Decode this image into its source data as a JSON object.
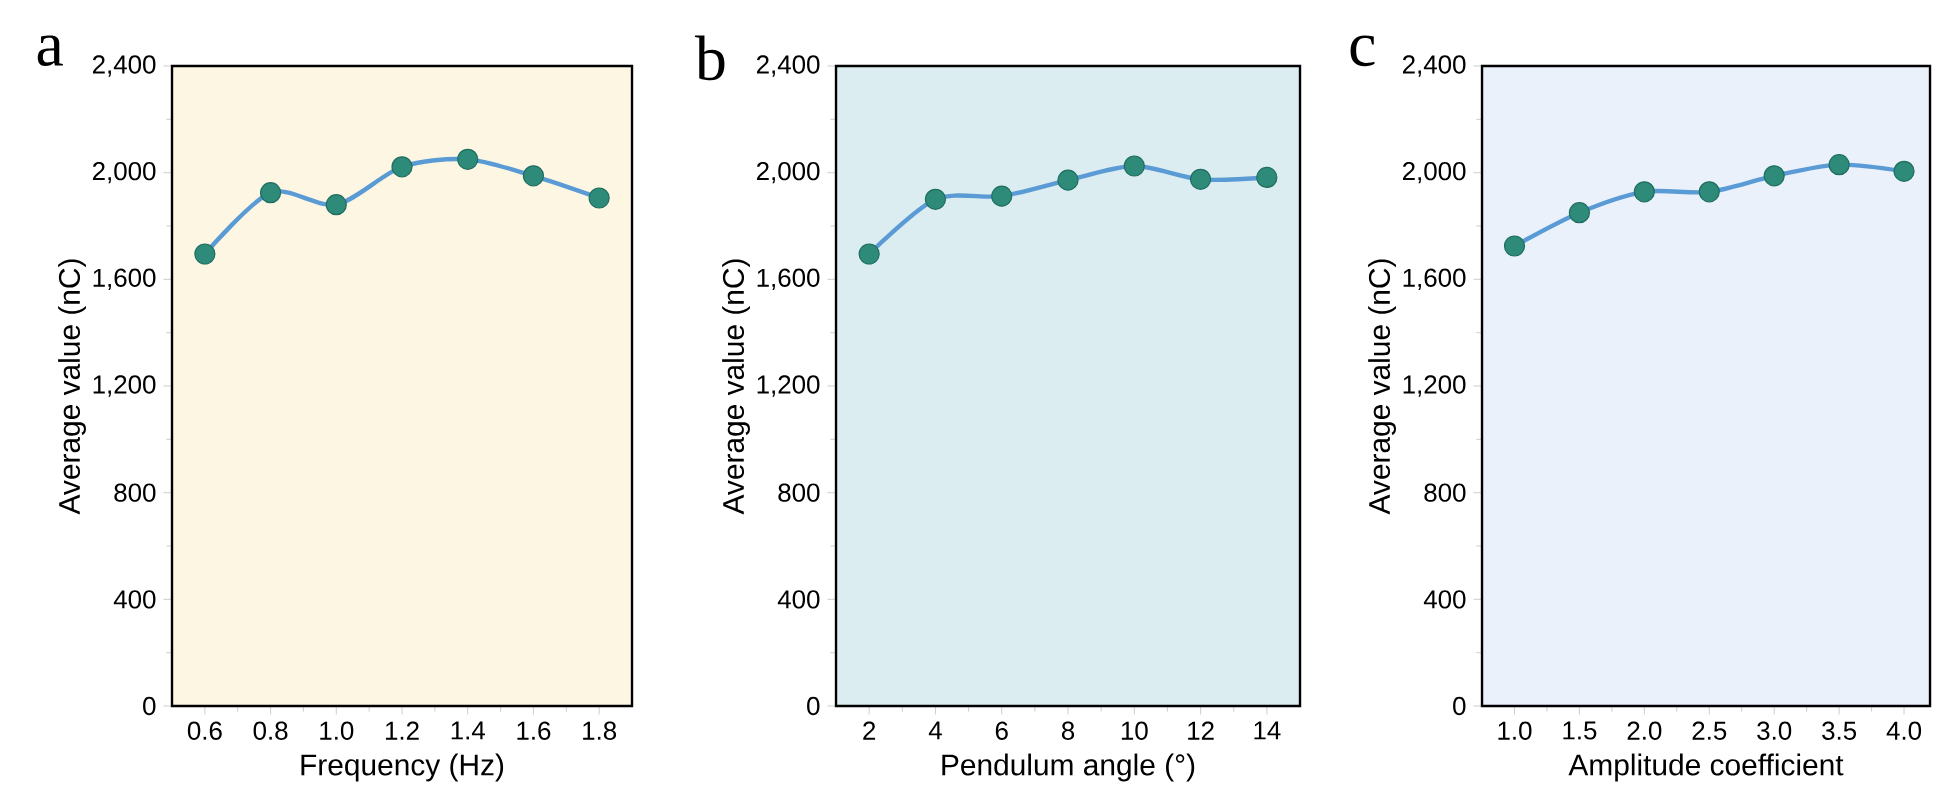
{
  "chart_data": [
    {
      "type": "line",
      "title": "a",
      "xlabel": "Frequency (Hz)",
      "ylabel": "Average value (nC)",
      "x": [
        0.6,
        0.8,
        1.0,
        1.2,
        1.4,
        1.6,
        1.8
      ],
      "series": [
        {
          "color": "#5b9bd5",
          "values": [
            1695,
            1925,
            1880,
            2022,
            2050,
            1988,
            1905
          ]
        }
      ],
      "xlim": [
        0.5,
        1.9
      ],
      "ylim": [
        0,
        2400
      ],
      "marker": "circle",
      "line_style": "solid",
      "xticks": [
        {
          "value": 0.6,
          "label": "0.6"
        },
        {
          "value": 0.8,
          "label": "0.8"
        },
        {
          "value": 1.0,
          "label": "1.0"
        },
        {
          "value": 1.2,
          "label": "1.2"
        },
        {
          "value": 1.4,
          "label": "1.4"
        },
        {
          "value": 1.6,
          "label": "1.6"
        },
        {
          "value": 1.8,
          "label": "1.8"
        }
      ],
      "yticks": [
        0,
        400,
        800,
        {
          "value": 1200,
          "label": "1,200"
        },
        {
          "value": 1600,
          "label": "1,600"
        },
        {
          "value": 2000,
          "label": "2,000"
        },
        {
          "value": 2400,
          "label": "2,400"
        }
      ]
    },
    {
      "type": "line",
      "title": "b",
      "xlabel": "Pendulum angle (°)",
      "ylabel": "Average value (nC)",
      "x": [
        2,
        4,
        6,
        8,
        10,
        12,
        14
      ],
      "series": [
        {
          "color": "#5b9bd5",
          "values": [
            1695,
            1900,
            1912,
            1972,
            2025,
            1975,
            1982
          ]
        }
      ],
      "xlim": [
        1,
        15
      ],
      "ylim": [
        0,
        2400
      ],
      "marker": "circle",
      "line_style": "solid",
      "xticks": [
        2,
        4,
        6,
        8,
        10,
        12,
        14
      ],
      "yticks": [
        0,
        400,
        800,
        {
          "value": 1200,
          "label": "1,200"
        },
        {
          "value": 1600,
          "label": "1,600"
        },
        {
          "value": 2000,
          "label": "2,000"
        },
        {
          "value": 2400,
          "label": "2,400"
        }
      ]
    },
    {
      "type": "line",
      "title": "c",
      "xlabel": "Amplitude coefficient",
      "ylabel": "Average value (nC)",
      "x": [
        1.0,
        1.5,
        2.0,
        2.5,
        3.0,
        3.5,
        4.0
      ],
      "series": [
        {
          "color": "#5b9bd5",
          "values": [
            1725,
            1850,
            1928,
            1928,
            1988,
            2030,
            2005
          ]
        }
      ],
      "xlim": [
        0.75,
        4.2
      ],
      "ylim": [
        0,
        2400
      ],
      "marker": "circle",
      "line_style": "solid",
      "xticks": [
        {
          "value": 1.0,
          "label": "1.0"
        },
        {
          "value": 1.5,
          "label": "1.5"
        },
        {
          "value": 2.0,
          "label": "2.0"
        },
        {
          "value": 2.5,
          "label": "2.5"
        },
        {
          "value": 3.0,
          "label": "3.0"
        },
        {
          "value": 3.5,
          "label": "3.5"
        },
        {
          "value": 4.0,
          "label": "4.0"
        }
      ],
      "yticks": [
        0,
        400,
        800,
        {
          "value": 1200,
          "label": "1,200"
        },
        {
          "value": 1600,
          "label": "1,600"
        },
        {
          "value": 2000,
          "label": "2,000"
        },
        {
          "value": 2400,
          "label": "2,400"
        }
      ]
    }
  ]
}
